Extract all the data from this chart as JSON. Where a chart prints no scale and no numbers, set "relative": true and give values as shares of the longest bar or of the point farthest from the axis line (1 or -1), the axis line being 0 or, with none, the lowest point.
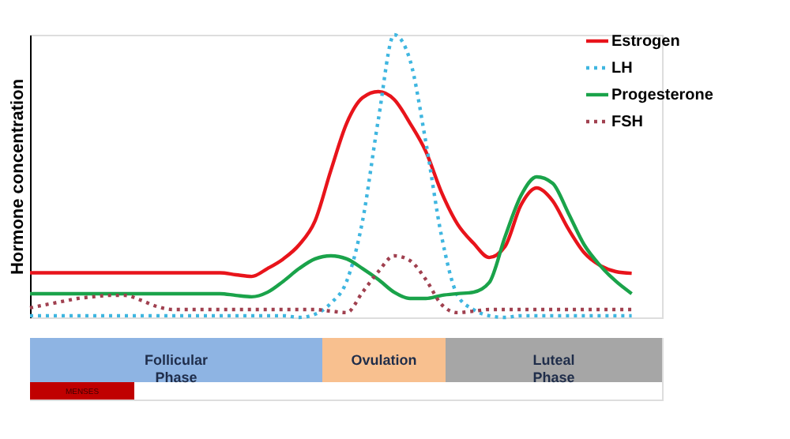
{
  "chart_data": {
    "type": "line",
    "relative": true,
    "ylabel": "Hormone concentration",
    "legend": "top right",
    "categories": [
      null,
      null,
      null,
      null,
      null,
      null,
      null,
      null,
      null,
      null,
      null,
      null,
      null,
      null,
      null,
      null,
      null,
      null,
      null,
      null,
      null,
      null,
      null,
      null,
      null,
      null,
      null,
      null,
      null,
      null,
      null,
      null,
      null,
      null,
      null,
      null,
      null,
      null,
      null
    ],
    "series": [
      {
        "name": "Estrogen",
        "color": "#e8141b",
        "line_style": "solid",
        "values": [
          0.158,
          0.158,
          0.158,
          0.158,
          0.158,
          0.158,
          0.158,
          0.158,
          0.158,
          0.158,
          0.158,
          0.158,
          0.158,
          0.151,
          0.145,
          0.173,
          0.207,
          0.257,
          0.341,
          0.52,
          0.687,
          0.777,
          0.799,
          0.771,
          0.687,
          0.587,
          0.441,
          0.33,
          0.263,
          0.212,
          0.251,
          0.397,
          0.458,
          0.413,
          0.313,
          0.229,
          0.184,
          0.162,
          0.156
        ]
      },
      {
        "name": "LH",
        "color": "#3fb6e0",
        "line_style": "dotted",
        "values": [
          0.006,
          0.006,
          0.006,
          0.006,
          0.006,
          0.006,
          0.006,
          0.006,
          0.006,
          0.006,
          0.006,
          0.006,
          0.006,
          0.006,
          0.006,
          0.006,
          0.006,
          0,
          0.011,
          0.05,
          0.128,
          0.341,
          0.7,
          1,
          0.91,
          0.62,
          0.285,
          0.078,
          0.028,
          0.006,
          0,
          0.006,
          0.006,
          0.006,
          0.006,
          0.006,
          0.006,
          0.006,
          0.006
        ]
      },
      {
        "name": "Progesterone",
        "color": "#1aa34a",
        "line_style": "solid",
        "values": [
          0.084,
          0.084,
          0.084,
          0.084,
          0.084,
          0.084,
          0.084,
          0.084,
          0.084,
          0.084,
          0.084,
          0.084,
          0.084,
          0.078,
          0.073,
          0.089,
          0.128,
          0.173,
          0.207,
          0.218,
          0.207,
          0.173,
          0.134,
          0.089,
          0.067,
          0.067,
          0.078,
          0.084,
          0.089,
          0.123,
          0.285,
          0.43,
          0.497,
          0.475,
          0.369,
          0.257,
          0.184,
          0.128,
          0.084
        ]
      },
      {
        "name": "FSH",
        "color": "#a0404f",
        "line_style": "dotted",
        "values": [
          0.034,
          0.045,
          0.056,
          0.067,
          0.073,
          0.078,
          0.078,
          0.061,
          0.039,
          0.028,
          0.028,
          0.028,
          0.028,
          0.028,
          0.028,
          0.028,
          0.028,
          0.028,
          0.028,
          0.022,
          0.017,
          0.089,
          0.162,
          0.218,
          0.201,
          0.134,
          0.045,
          0.017,
          0.022,
          0.028,
          0.028,
          0.028,
          0.028,
          0.028,
          0.028,
          0.028,
          0.028,
          0.028,
          0.028
        ]
      }
    ],
    "annotations": [
      "Follicular\nPhase",
      "Ovulation",
      "Luteal\nPhase",
      "MENSES"
    ]
  }
}
